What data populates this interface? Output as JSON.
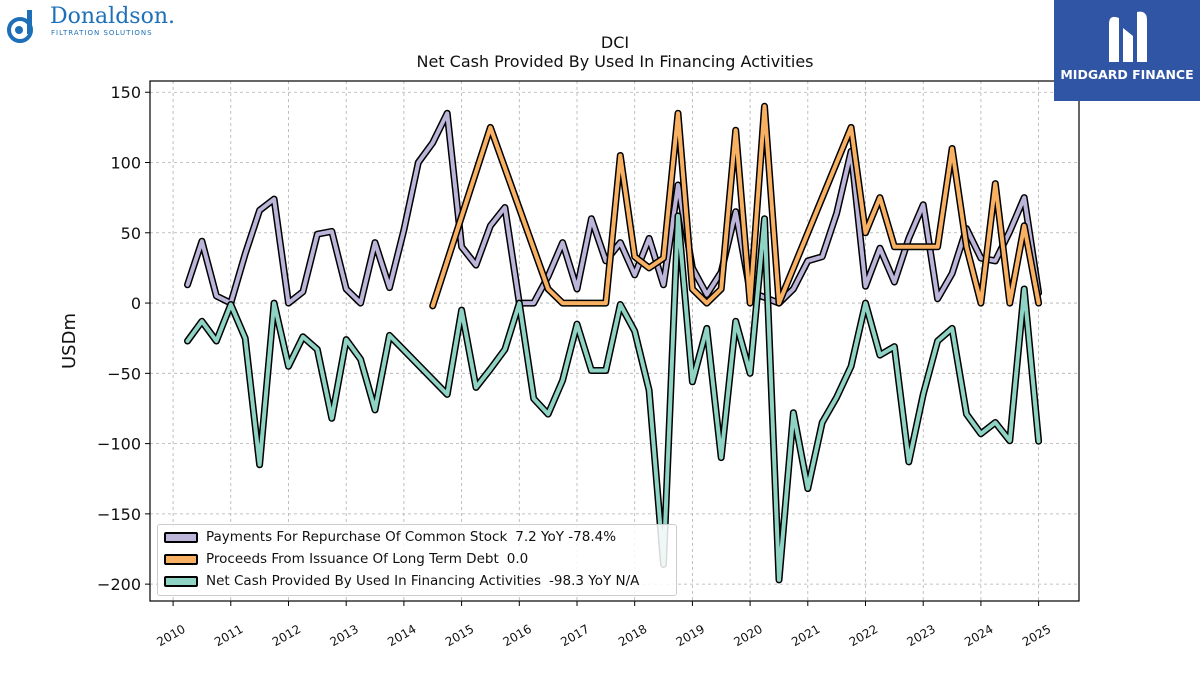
{
  "header": {
    "brand_left": "Donaldson.",
    "brand_left_sub": "FILTRATION SOLUTIONS",
    "brand_right": "MIDGARD FINANCE",
    "brand_color_left": "#1d6fb8",
    "brand_color_right": "#2f55a4"
  },
  "chart_data": {
    "type": "line",
    "title": "DCI",
    "subtitle": "Net Cash Provided By Used In Financing Activities",
    "xlabel": "",
    "ylabel": "USDm",
    "xlim": [
      2009.6,
      2025.7
    ],
    "ylim": [
      -212,
      158
    ],
    "yticks": [
      150,
      100,
      50,
      0,
      -50,
      -100,
      -150,
      -200
    ],
    "ytick_labels": [
      "150",
      "100",
      "50",
      "0",
      "−50",
      "−100",
      "−150",
      "−200"
    ],
    "xticks": [
      2010,
      2011,
      2012,
      2013,
      2014,
      2015,
      2016,
      2017,
      2018,
      2019,
      2020,
      2021,
      2022,
      2023,
      2024,
      2025
    ],
    "xtick_labels": [
      "2010",
      "2011",
      "2012",
      "2013",
      "2014",
      "2015",
      "2016",
      "2017",
      "2018",
      "2019",
      "2020",
      "2021",
      "2022",
      "2023",
      "2024",
      "2025"
    ],
    "grid": true,
    "legend_position": "bottom-left",
    "series": [
      {
        "name": "Payments For Repurchase Of Common Stock",
        "legend_value": "7.2 YoY -78.4%",
        "color": "#bcb5d9",
        "x": [
          2010.25,
          2010.5,
          2010.75,
          2011.0,
          2011.25,
          2011.5,
          2011.75,
          2012.0,
          2012.25,
          2012.5,
          2012.75,
          2013.0,
          2013.25,
          2013.5,
          2013.75,
          2014.0,
          2014.25,
          2014.5,
          2014.75,
          2015.0,
          2015.25,
          2015.5,
          2015.75,
          2016.0,
          2016.25,
          2016.5,
          2016.75,
          2017.0,
          2017.25,
          2017.5,
          2017.75,
          2018.0,
          2018.25,
          2018.5,
          2018.75,
          2019.0,
          2019.25,
          2019.5,
          2019.75,
          2020.0,
          2020.25,
          2020.5,
          2020.75,
          2021.0,
          2021.25,
          2021.5,
          2021.75,
          2022.0,
          2022.25,
          2022.5,
          2022.75,
          2023.0,
          2023.25,
          2023.5,
          2023.75,
          2024.0,
          2024.25,
          2024.5,
          2024.75,
          2025.0
        ],
        "y": [
          13,
          44,
          5,
          0,
          35,
          66,
          74,
          0,
          8,
          49,
          51,
          10,
          0,
          43,
          11,
          52,
          100,
          114,
          135,
          40,
          27,
          55,
          68,
          0,
          0,
          19,
          43,
          10,
          60,
          30,
          43,
          20,
          46,
          13,
          84,
          25,
          6,
          22,
          65,
          8,
          4,
          0,
          10,
          30,
          33,
          64,
          108,
          12,
          39,
          15,
          46,
          70,
          3,
          21,
          53,
          32,
          30,
          51,
          75,
          7.2
        ]
      },
      {
        "name": "Proceeds From Issuance Of Long Term Debt",
        "legend_value": "0.0",
        "color": "#f8b163",
        "x": [
          2014.5,
          2015.5,
          2016.5,
          2016.75,
          2017.0,
          2017.25,
          2017.5,
          2017.75,
          2018.0,
          2018.25,
          2018.5,
          2018.75,
          2019.0,
          2019.25,
          2019.5,
          2019.75,
          2020.0,
          2020.25,
          2020.5,
          2021.75,
          2022.0,
          2022.25,
          2022.5,
          2022.75,
          2023.0,
          2023.25,
          2023.5,
          2023.75,
          2024.0,
          2024.25,
          2024.5,
          2024.75,
          2025.0
        ],
        "y": [
          -2,
          125,
          10,
          0,
          0,
          0,
          0,
          105,
          33,
          25,
          32,
          135,
          10,
          0,
          10,
          123,
          0,
          140,
          0,
          125,
          50,
          75,
          40,
          40,
          40,
          40,
          110,
          40,
          0,
          85,
          0,
          55,
          0.0
        ]
      },
      {
        "name": "Net Cash Provided By Used In Financing Activities",
        "legend_value": "-98.3 YoY N/A",
        "color": "#8fd3c5",
        "x": [
          2010.25,
          2010.5,
          2010.75,
          2011.0,
          2011.25,
          2011.5,
          2011.75,
          2012.0,
          2012.25,
          2012.5,
          2012.75,
          2013.0,
          2013.25,
          2013.5,
          2013.75,
          2014.75,
          2015.0,
          2015.25,
          2015.5,
          2015.75,
          2016.0,
          2016.25,
          2016.5,
          2016.75,
          2017.0,
          2017.25,
          2017.5,
          2017.75,
          2018.0,
          2018.25,
          2018.5,
          2018.75,
          2019.0,
          2019.25,
          2019.5,
          2019.75,
          2020.0,
          2020.25,
          2020.5,
          2020.75,
          2021.0,
          2021.25,
          2021.5,
          2021.75,
          2022.0,
          2022.25,
          2022.5,
          2022.75,
          2023.0,
          2023.25,
          2023.5,
          2023.75,
          2024.0,
          2024.25,
          2024.5,
          2024.75,
          2025.0
        ],
        "y": [
          -27,
          -13,
          -27,
          -1,
          -25,
          -115,
          0,
          -45,
          -24,
          -33,
          -82,
          -26,
          -40,
          -76,
          -23,
          -65,
          -5,
          -60,
          -47,
          -33,
          0,
          -68,
          -79,
          -55,
          -15,
          -48,
          -48,
          -1,
          -20,
          -62,
          -186,
          62,
          -56,
          -18,
          -110,
          -13,
          -50,
          60,
          -197,
          -78,
          -132,
          -85,
          -67,
          -45,
          0,
          -37,
          -31,
          -113,
          -65,
          -27,
          -18,
          -79,
          -93,
          -85,
          -98,
          10,
          -98.3
        ]
      }
    ]
  }
}
